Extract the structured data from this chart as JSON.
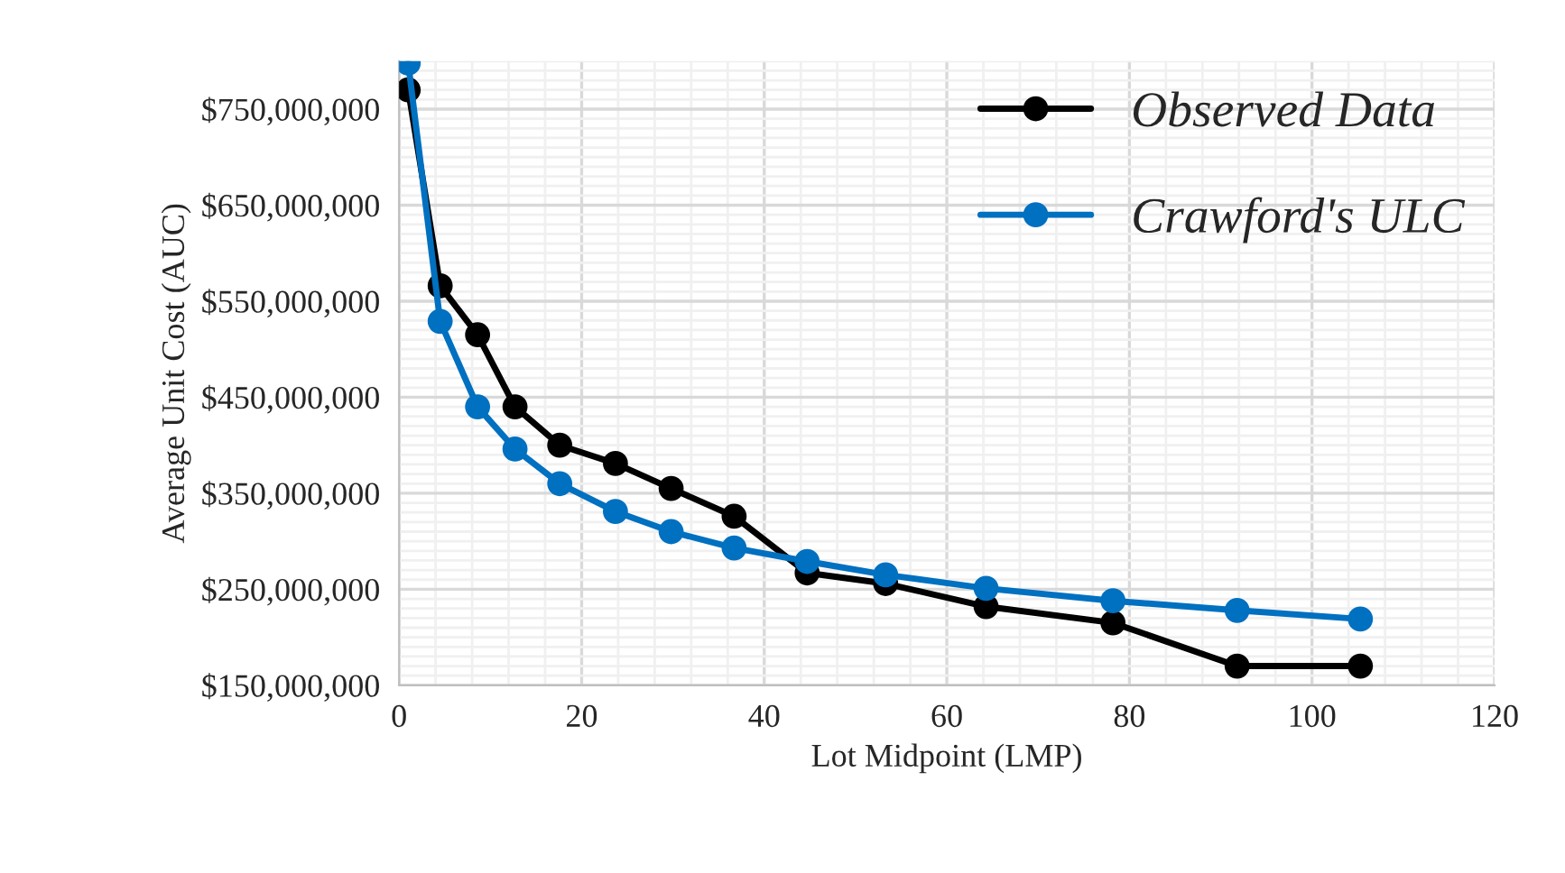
{
  "chart_data": {
    "type": "line",
    "xlabel": "Lot Midpoint (LMP)",
    "ylabel": "Average Unit Cost (AUC)",
    "x": [
      1,
      4.5,
      8.6,
      12.7,
      17.6,
      23.7,
      29.8,
      36.7,
      44.7,
      53.3,
      64.3,
      78.2,
      91.8,
      105.3
    ],
    "series": [
      {
        "name": "Observed Data",
        "color": "#000000",
        "values": [
          770000000,
          566000000,
          515000000,
          440000000,
          400000000,
          381000000,
          355000000,
          326000000,
          267000000,
          256000000,
          232000000,
          215000000,
          170000000,
          170000000
        ]
      },
      {
        "name": "Crawford's ULC",
        "color": "#0070c0",
        "values": [
          798000000,
          529000000,
          440000000,
          396000000,
          360000000,
          331000000,
          310000000,
          293000000,
          279000000,
          265000000,
          251000000,
          238000000,
          228000000,
          219000000
        ]
      }
    ],
    "xlim": [
      0,
      120
    ],
    "xticks": [
      0,
      20,
      40,
      60,
      80,
      100,
      120
    ],
    "ylim": [
      150000000,
      800000000
    ],
    "yticks": [
      {
        "value": 150000000,
        "label": "$150,000,000"
      },
      {
        "value": 250000000,
        "label": "$250,000,000"
      },
      {
        "value": 350000000,
        "label": "$350,000,000"
      },
      {
        "value": 450000000,
        "label": "$450,000,000"
      },
      {
        "value": 550000000,
        "label": "$550,000,000"
      },
      {
        "value": 650000000,
        "label": "$650,000,000"
      },
      {
        "value": 750000000,
        "label": "$750,000,000"
      }
    ],
    "grid": true,
    "legend": "top right",
    "marker": "circle",
    "line_style": "solid"
  }
}
